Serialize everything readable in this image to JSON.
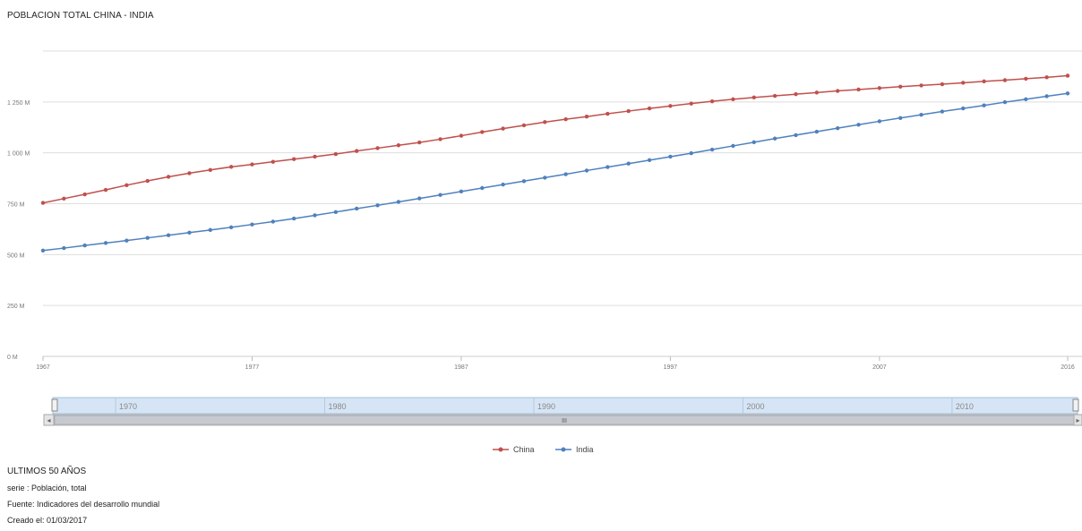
{
  "chart_data": {
    "type": "line",
    "title": "POBLACION TOTAL CHINA - INDIA",
    "xlabel": "",
    "ylabel": "",
    "x": [
      1967,
      1968,
      1969,
      1970,
      1971,
      1972,
      1973,
      1974,
      1975,
      1976,
      1977,
      1978,
      1979,
      1980,
      1981,
      1982,
      1983,
      1984,
      1985,
      1986,
      1987,
      1988,
      1989,
      1990,
      1991,
      1992,
      1993,
      1994,
      1995,
      1996,
      1997,
      1998,
      1999,
      2000,
      2001,
      2002,
      2003,
      2004,
      2005,
      2006,
      2007,
      2008,
      2009,
      2010,
      2011,
      2012,
      2013,
      2014,
      2015,
      2016
    ],
    "series": [
      {
        "name": "China",
        "color": "#c0504d",
        "values": [
          754,
          775,
          796,
          818,
          841,
          862,
          882,
          900,
          916,
          931,
          943,
          956,
          969,
          981,
          994,
          1009,
          1023,
          1037,
          1051,
          1067,
          1084,
          1102,
          1119,
          1135,
          1151,
          1165,
          1178,
          1192,
          1205,
          1218,
          1230,
          1242,
          1253,
          1263,
          1272,
          1280,
          1288,
          1296,
          1304,
          1311,
          1318,
          1325,
          1331,
          1337,
          1344,
          1351,
          1357,
          1364,
          1371,
          1379
        ]
      },
      {
        "name": "India",
        "color": "#4f81bd",
        "values": [
          520,
          532,
          545,
          557,
          569,
          582,
          595,
          608,
          621,
          634,
          648,
          662,
          677,
          693,
          709,
          726,
          742,
          759,
          776,
          793,
          810,
          827,
          844,
          861,
          878,
          895,
          913,
          930,
          947,
          964,
          981,
          998,
          1016,
          1034,
          1052,
          1070,
          1087,
          1104,
          1121,
          1138,
          1155,
          1171,
          1187,
          1203,
          1218,
          1233,
          1249,
          1263,
          1278,
          1292
        ]
      }
    ],
    "ylim": [
      0,
      1500
    ],
    "yticks": [
      0,
      250,
      500,
      750,
      1000,
      1250
    ],
    "ytick_labels": [
      "0 M",
      "250 M",
      "500 M",
      "750 M",
      "1 000 M",
      "1 250 M"
    ],
    "xticks": [
      1967,
      1977,
      1987,
      1997,
      2007,
      2016
    ],
    "xtick_labels": [
      "1967",
      "1977",
      "1987",
      "1997",
      "2007",
      "2016"
    ],
    "grid": true,
    "legend": "bottom-center"
  },
  "navigator": {
    "labels": [
      "1970",
      "1980",
      "1990",
      "2000",
      "2010"
    ],
    "scroll_label": "III",
    "left_arrow": "◂",
    "right_arrow": "▸"
  },
  "info": {
    "heading": "ULTIMOS 50 AÑOS",
    "serie": "serie : Población, total",
    "source": "Fuente: Indicadores del desarrollo mundial",
    "created": "Creado el: 01/03/2017"
  }
}
